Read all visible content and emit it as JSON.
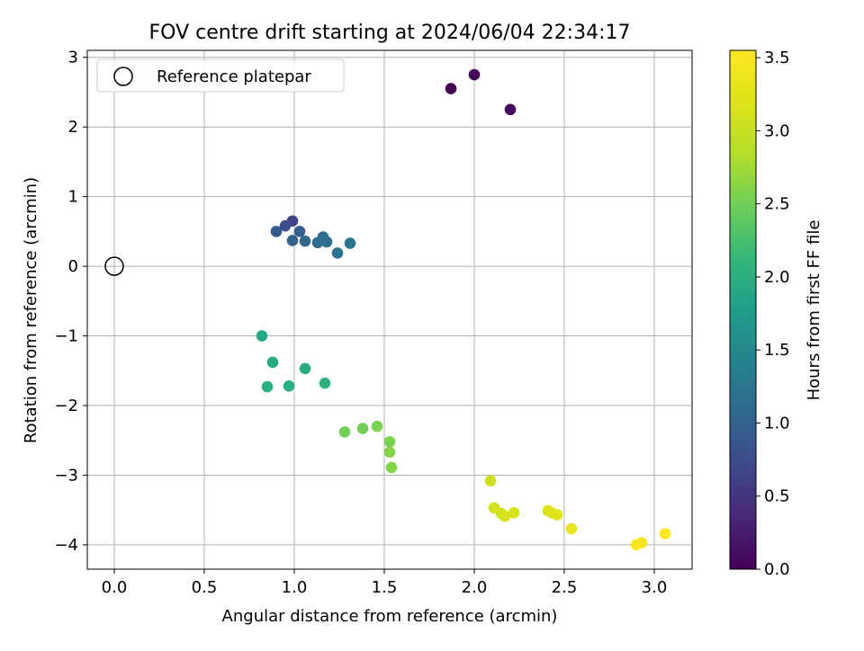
{
  "chart_data": {
    "type": "scatter",
    "title": "FOV centre drift starting at 2024/06/04 22:34:17",
    "xlabel": "Angular distance from reference (arcmin)",
    "ylabel": "Rotation from reference (arcmin)",
    "xlim": [
      -0.15,
      3.21
    ],
    "ylim": [
      -4.35,
      3.1
    ],
    "xticks": [
      0.0,
      0.5,
      1.0,
      1.5,
      2.0,
      2.5,
      3.0
    ],
    "xtick_labels": [
      "0.0",
      "0.5",
      "1.0",
      "1.5",
      "2.0",
      "2.5",
      "3.0"
    ],
    "yticks": [
      -4,
      -3,
      -2,
      -1,
      0,
      1,
      2,
      3
    ],
    "ytick_labels": [
      "−4",
      "−3",
      "−2",
      "−1",
      "0",
      "1",
      "2",
      "3"
    ],
    "grid": true,
    "legend": {
      "position": "top-left",
      "entries": [
        "Reference platepar"
      ]
    },
    "reference_point": {
      "x": 0.0,
      "y": 0.0,
      "label": "Reference platepar"
    },
    "colorbar": {
      "label": "Hours from first FF file",
      "range": [
        0.0,
        3.55
      ],
      "ticks": [
        0.0,
        0.5,
        1.0,
        1.5,
        2.0,
        2.5,
        3.0,
        3.5
      ],
      "tick_labels": [
        "0.0",
        "0.5",
        "1.0",
        "1.5",
        "2.0",
        "2.5",
        "3.0",
        "3.5"
      ],
      "colormap": "viridis"
    },
    "points": [
      {
        "x": 1.87,
        "y": 2.55,
        "hours": 0.0
      },
      {
        "x": 2.0,
        "y": 2.75,
        "hours": 0.03
      },
      {
        "x": 2.2,
        "y": 2.25,
        "hours": 0.08
      },
      {
        "x": 0.99,
        "y": 0.65,
        "hours": 0.65
      },
      {
        "x": 0.95,
        "y": 0.58,
        "hours": 0.75
      },
      {
        "x": 0.9,
        "y": 0.5,
        "hours": 0.9
      },
      {
        "x": 1.03,
        "y": 0.5,
        "hours": 0.95
      },
      {
        "x": 0.99,
        "y": 0.37,
        "hours": 1.0
      },
      {
        "x": 1.06,
        "y": 0.36,
        "hours": 1.05
      },
      {
        "x": 1.13,
        "y": 0.34,
        "hours": 1.1
      },
      {
        "x": 1.16,
        "y": 0.42,
        "hours": 1.12
      },
      {
        "x": 1.18,
        "y": 0.35,
        "hours": 1.15
      },
      {
        "x": 1.24,
        "y": 0.19,
        "hours": 1.2
      },
      {
        "x": 1.31,
        "y": 0.33,
        "hours": 1.25
      },
      {
        "x": 0.82,
        "y": -1.0,
        "hours": 1.9
      },
      {
        "x": 0.88,
        "y": -1.38,
        "hours": 1.95
      },
      {
        "x": 1.06,
        "y": -1.47,
        "hours": 1.95
      },
      {
        "x": 0.85,
        "y": -1.73,
        "hours": 2.0
      },
      {
        "x": 0.97,
        "y": -1.72,
        "hours": 2.0
      },
      {
        "x": 1.17,
        "y": -1.68,
        "hours": 2.05
      },
      {
        "x": 1.28,
        "y": -2.38,
        "hours": 2.5
      },
      {
        "x": 1.38,
        "y": -2.33,
        "hours": 2.5
      },
      {
        "x": 1.46,
        "y": -2.3,
        "hours": 2.55
      },
      {
        "x": 1.53,
        "y": -2.52,
        "hours": 2.55
      },
      {
        "x": 1.53,
        "y": -2.67,
        "hours": 2.6
      },
      {
        "x": 1.54,
        "y": -2.89,
        "hours": 2.6
      },
      {
        "x": 2.09,
        "y": -3.08,
        "hours": 3.05
      },
      {
        "x": 2.11,
        "y": -3.47,
        "hours": 3.1
      },
      {
        "x": 2.15,
        "y": -3.55,
        "hours": 3.1
      },
      {
        "x": 2.17,
        "y": -3.59,
        "hours": 3.15
      },
      {
        "x": 2.22,
        "y": -3.54,
        "hours": 3.15
      },
      {
        "x": 2.41,
        "y": -3.51,
        "hours": 3.2
      },
      {
        "x": 2.43,
        "y": -3.54,
        "hours": 3.2
      },
      {
        "x": 2.46,
        "y": -3.57,
        "hours": 3.25
      },
      {
        "x": 2.54,
        "y": -3.77,
        "hours": 3.3
      },
      {
        "x": 2.9,
        "y": -4.0,
        "hours": 3.5
      },
      {
        "x": 2.93,
        "y": -3.97,
        "hours": 3.5
      },
      {
        "x": 3.06,
        "y": -3.84,
        "hours": 3.55
      }
    ]
  }
}
